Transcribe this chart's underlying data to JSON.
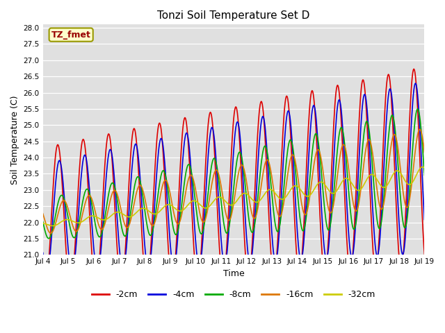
{
  "title": "Tonzi Soil Temperature Set D",
  "xlabel": "Time",
  "ylabel": "Soil Temperature (C)",
  "ylim": [
    21.0,
    28.1
  ],
  "xlim": [
    0,
    360
  ],
  "bg_color": "#e0e0e0",
  "fig_bg": "#ffffff",
  "annotation_text": "TZ_fmet",
  "annotation_color": "#990000",
  "annotation_bg": "#ffffcc",
  "annotation_border": "#999900",
  "tick_labels": [
    "Jul 4",
    "Jul 5",
    "Jul 6",
    "Jul 7",
    "Jul 8",
    "Jul 9",
    "Jul 10",
    "Jul 11",
    "Jul 12",
    "Jul 13",
    "Jul 14",
    "Jul 15",
    "Jul 16",
    "Jul 17",
    "Jul 18",
    "Jul 19"
  ],
  "tick_positions": [
    0,
    24,
    48,
    72,
    96,
    120,
    144,
    168,
    192,
    216,
    240,
    264,
    288,
    312,
    336,
    360
  ],
  "series_colors": [
    "#dd0000",
    "#0000dd",
    "#00aa00",
    "#dd7700",
    "#cccc00"
  ],
  "series_labels": [
    "-2cm",
    "-4cm",
    "-8cm",
    "-16cm",
    "-32cm"
  ],
  "line_width": 1.2,
  "n_points": 721
}
